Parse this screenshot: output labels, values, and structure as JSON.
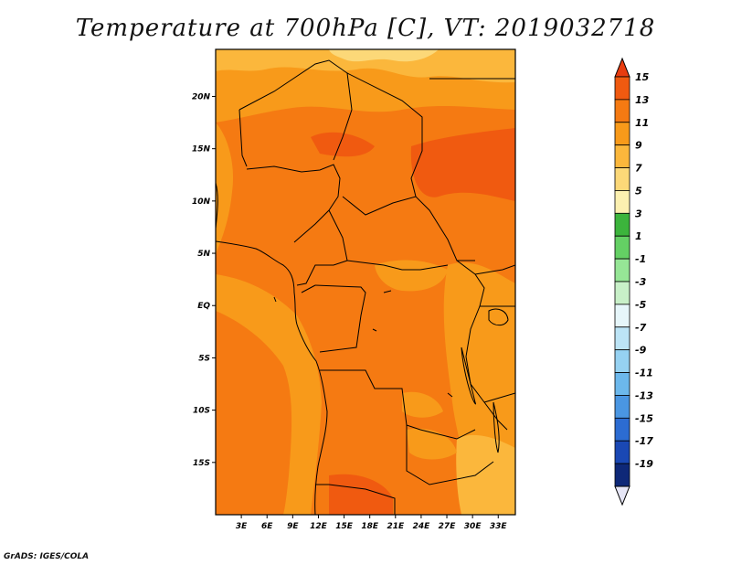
{
  "title": "Temperature at 700hPa [C], VT: 2019032718",
  "footer": "GrADS: IGES/COLA",
  "map": {
    "lat_labels": [
      "20N",
      "15N",
      "10N",
      "5N",
      "EQ",
      "5S",
      "10S",
      "15S"
    ],
    "lon_labels": [
      "3E",
      "6E",
      "9E",
      "12E",
      "15E",
      "18E",
      "21E",
      "24E",
      "27E",
      "30E",
      "33E"
    ],
    "lat_values": [
      20,
      15,
      10,
      5,
      0,
      -5,
      -10,
      -15
    ],
    "lon_values": [
      3,
      6,
      9,
      12,
      15,
      18,
      21,
      24,
      27,
      30,
      33
    ],
    "lon_range": [
      0,
      35
    ],
    "lat_range": [
      -20,
      24.5
    ]
  },
  "colorbar": {
    "labels": [
      "15",
      "13",
      "11",
      "9",
      "7",
      "5",
      "3",
      "1",
      "-1",
      "-3",
      "-5",
      "-7",
      "-9",
      "-11",
      "-13",
      "-15",
      "-17",
      "-19"
    ],
    "colors": [
      "#e83c0f",
      "#f05a10",
      "#f57a12",
      "#f89a1a",
      "#fbb73c",
      "#fcd878",
      "#fcf0b0",
      "#3cb43c",
      "#64d064",
      "#96e696",
      "#c8f0c8",
      "#e6f6fa",
      "#bce4f6",
      "#96d2f2",
      "#6cb8ec",
      "#4a96e2",
      "#2c6cd2",
      "#1a48b4",
      "#0e2878",
      "#e6e6f6"
    ]
  }
}
